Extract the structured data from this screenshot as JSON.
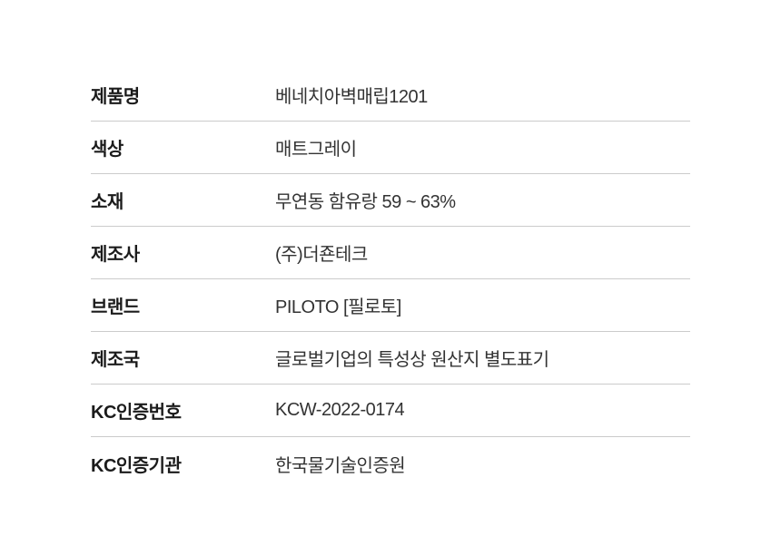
{
  "spec_table": {
    "rows": [
      {
        "label": "제품명",
        "value": "베네치아벽매립1201"
      },
      {
        "label": "색상",
        "value": "매트그레이"
      },
      {
        "label": "소재",
        "value": "무연동 함유랑 59 ~ 63%"
      },
      {
        "label": "제조사",
        "value": "(주)더죤테크"
      },
      {
        "label": "브랜드",
        "value": "PILOTO [필로토]"
      },
      {
        "label": "제조국",
        "value": "글로벌기업의 특성상 원산지 별도표기"
      },
      {
        "label": "KC인증번호",
        "value": "KCW-2022-0174"
      },
      {
        "label": "KC인증기관",
        "value": "한국물기술인증원"
      }
    ]
  },
  "colors": {
    "background": "#ffffff",
    "label_text": "#1b1b1b",
    "value_text": "#333333",
    "divider": "#cbcbcb"
  }
}
